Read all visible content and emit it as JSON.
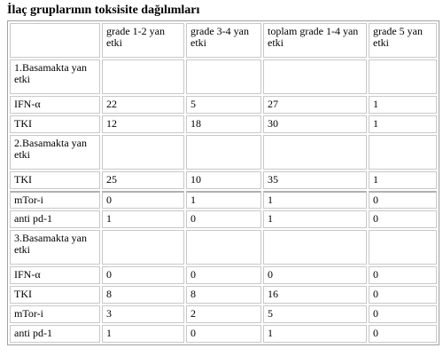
{
  "title": "İlaç gruplarının toksisite dağılımları",
  "table": {
    "header": [
      "grade 1-2 yan etki",
      "grade 3-4 yan etki",
      "toplam grade 1-4 yan etki",
      "grade 5 yan etki"
    ],
    "rows": [
      {
        "label": "1.Basamakta yan etki"
      },
      {
        "label": "IFN-α",
        "cells": [
          22,
          5,
          27,
          1
        ]
      },
      {
        "label": "TKI",
        "cells": [
          12,
          18,
          30,
          1
        ]
      },
      {
        "label": "2.Basamakta yan etki"
      },
      {
        "label": "TKI",
        "cells": [
          25,
          10,
          35,
          1
        ]
      },
      {
        "label": "mTor-i",
        "cells": [
          0,
          1,
          1,
          0
        ]
      },
      {
        "label": "anti pd-1",
        "cells": [
          1,
          0,
          1,
          0
        ]
      },
      {
        "label": "3.Basamakta yan etki"
      },
      {
        "label": "IFN-α",
        "cells": [
          0,
          0,
          0,
          0
        ]
      },
      {
        "label": "TKI",
        "cells": [
          8,
          8,
          16,
          0
        ]
      },
      {
        "label": "mTor-i",
        "cells": [
          3,
          2,
          5,
          0
        ]
      },
      {
        "label": "anti pd-1",
        "cells": [
          1,
          0,
          1,
          0
        ]
      }
    ]
  }
}
